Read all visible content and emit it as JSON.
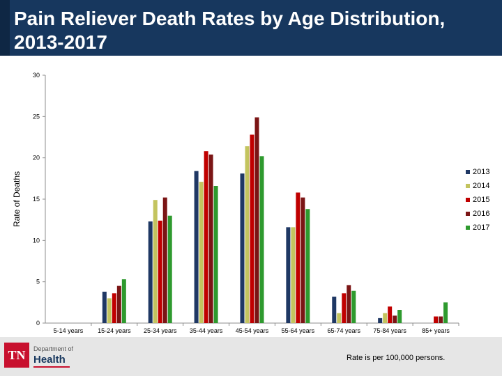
{
  "header": {
    "title_line1": "Pain Reliever Death Rates by Age Distribution,",
    "title_line2": "2013-2017"
  },
  "chart_data": {
    "type": "bar",
    "title": "Pain Reliever Death Rates by Age Distribution, 2013-2017",
    "xlabel": "",
    "ylabel": "Rate of Deaths",
    "ylim": [
      0,
      30
    ],
    "yticks": [
      0,
      5,
      10,
      15,
      20,
      25,
      30
    ],
    "grid": false,
    "legend_position": "right",
    "categories": [
      "5-14 years",
      "15-24 years",
      "25-34 years",
      "35-44 years",
      "45-54 years",
      "55-64 years",
      "65-74 years",
      "75-84 years",
      "85+ years"
    ],
    "series": [
      {
        "name": "2013",
        "color": "#1f3864",
        "values": [
          0,
          3.8,
          12.3,
          18.4,
          18.1,
          11.6,
          3.2,
          0.6,
          0
        ]
      },
      {
        "name": "2014",
        "color": "#c3c45f",
        "values": [
          0,
          3.0,
          14.9,
          17.1,
          21.4,
          11.6,
          1.2,
          1.2,
          0
        ]
      },
      {
        "name": "2015",
        "color": "#c00000",
        "values": [
          0,
          3.6,
          12.4,
          20.8,
          22.8,
          15.8,
          3.6,
          2.0,
          0.8
        ]
      },
      {
        "name": "2016",
        "color": "#7b1515",
        "values": [
          0,
          4.5,
          15.2,
          20.4,
          24.9,
          15.2,
          4.6,
          0.9,
          0.8
        ]
      },
      {
        "name": "2017",
        "color": "#2e9a2e",
        "values": [
          0,
          5.3,
          13.0,
          16.6,
          20.2,
          13.8,
          3.9,
          1.6,
          2.5
        ]
      }
    ]
  },
  "footer": {
    "note": "Rate is per 100,000 persons.",
    "logo_tn": "TN",
    "logo_department": "Department of",
    "logo_health": "Health"
  }
}
